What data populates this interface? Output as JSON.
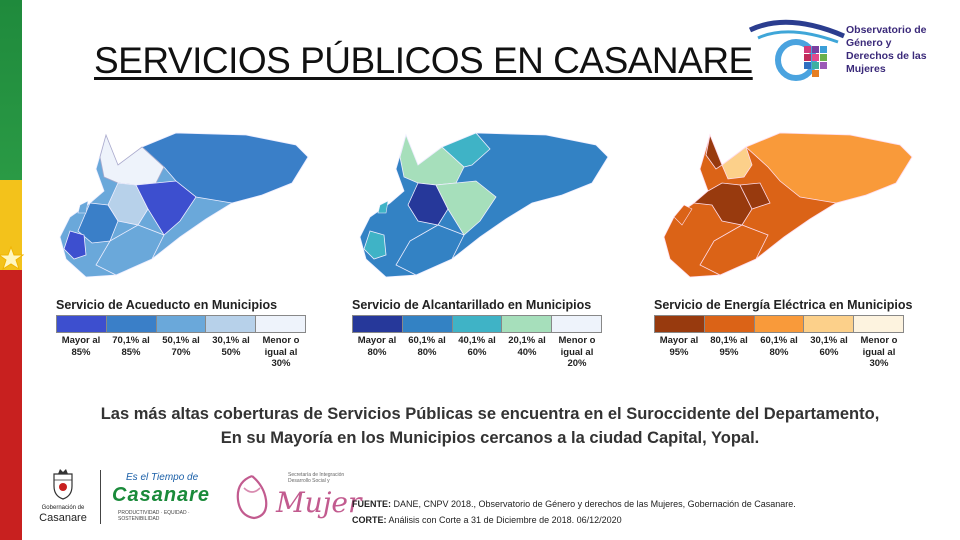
{
  "slide": {
    "title": "SERVICIOS PÚBLICOS EN CASANARE",
    "observatorio_logo": {
      "line1": "Observatorio de",
      "line2": "Género y",
      "line3": "Derechos de las",
      "line4": "Mujeres"
    },
    "maps": [
      {
        "legend_title": "Servicio de Acueducto en Municipios",
        "colors": [
          "#3d4fcf",
          "#3a7fc8",
          "#6aa8da",
          "#b7d1ea",
          "#eef3fb"
        ],
        "labels": [
          "Mayor al 85%",
          "70,1% al 85%",
          "50,1% al 70%",
          "30,1% al 50%",
          "Menor o igual al 30%"
        ]
      },
      {
        "legend_title": "Servicio de Alcantarillado en Municipios",
        "colors": [
          "#26389a",
          "#3382c4",
          "#3fb3c6",
          "#a6dfbb",
          "#eef3fb"
        ],
        "labels": [
          "Mayor al 80%",
          "60,1% al 80%",
          "40,1% al 60%",
          "20,1% al 40%",
          "Menor o igual al 20%"
        ]
      },
      {
        "legend_title": "Servicio de Energía Eléctrica en Municipios",
        "colors": [
          "#983a0e",
          "#db6317",
          "#f99a3a",
          "#fcd08a",
          "#fdf3df"
        ],
        "labels": [
          "Mayor al 95%",
          "80,1% al 95%",
          "60,1% al 80%",
          "30,1% al 60%",
          "Menor o igual al 30%"
        ]
      }
    ],
    "summary_line1": "Las más altas coberturas de Servicios Públicas se encuentra en el Suroccidente del Departamento,",
    "summary_line2": "En su Mayoría en los Municipios cercanos a la ciudad Capital, Yopal.",
    "gobernacion": {
      "small": "Gobernación de",
      "big": "Casanare"
    },
    "tiempo": {
      "line1": "Es el Tiempo de",
      "line2": "Casanare",
      "line3": "PRODUCTIVIDAD · EQUIDAD · SOSTENIBILIDAD"
    },
    "mujer": {
      "line1": "Secretaría de Integración Desarrollo Social y",
      "line2": "Mujer"
    },
    "source_label": "FUENTE:",
    "source_text": "DANE, CNPV 2018., Observatorio de Género y derechos de las Mujeres, Gobernación de Casanare.",
    "corte_label": "CORTE:",
    "corte_text": "Análisis con Corte a 31 de Diciembre de 2018. 06/12/2020"
  }
}
